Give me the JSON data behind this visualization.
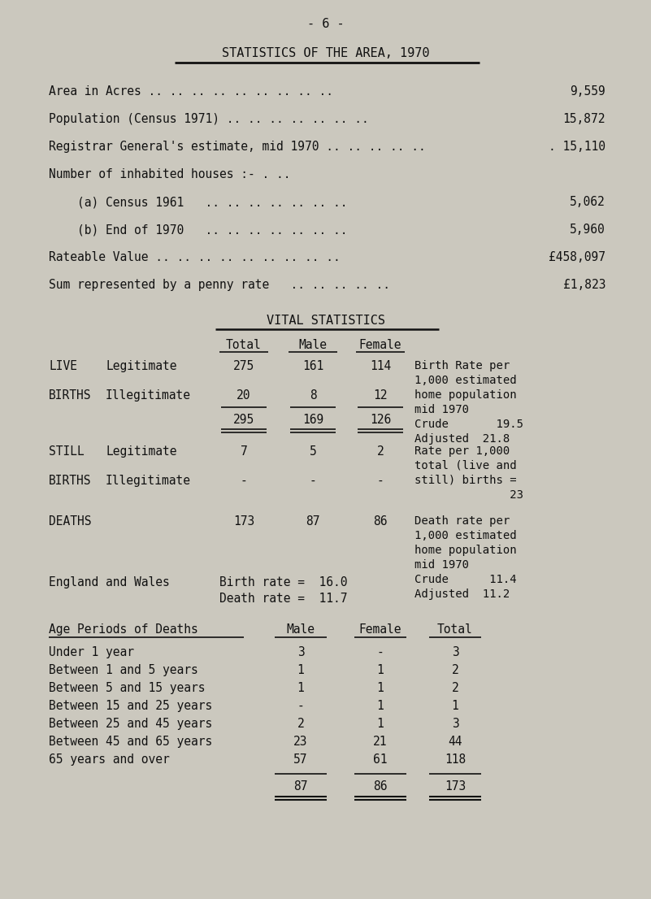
{
  "page_num": "- 6 -",
  "title": "STATISTICS OF THE AREA, 1970",
  "bg_color": "#cbc8be",
  "text_color": "#111111",
  "area_stats": [
    {
      "label": "Area in Acres .. .. .. .. .. .. .. .. ..",
      "value": "9,559"
    },
    {
      "label": "Population (Census 1971) .. .. .. .. .. .. ..",
      "value": "15,872"
    },
    {
      "label": "Registrar General's estimate, mid 1970 .. .. .. .. ..",
      "value": ". 15,110"
    },
    {
      "label": "Number of inhabited houses :- . ..",
      "value": ""
    },
    {
      "label": "    (a) Census 1961   .. .. .. .. .. .. ..",
      "value": "5,062"
    },
    {
      "label": "    (b) End of 1970   .. .. .. .. .. .. ..",
      "value": "5,960"
    },
    {
      "label": "Rateable Value .. .. .. .. .. .. .. .. ..",
      "value": "£458,097"
    },
    {
      "label": "Sum represented by a penny rate   .. .. .. .. ..",
      "value": "£1,823"
    }
  ],
  "vital_stats_title": "VITAL STATISTICS",
  "birth_rate_note": [
    "Birth Rate per",
    "1,000 estimated",
    "home population",
    "mid 1970",
    "Crude       19.5",
    "Adjusted  21.8"
  ],
  "still_birth_note": [
    "Rate per 1,000",
    "total (live and",
    "still) births =",
    "              23"
  ],
  "death_rate_note": [
    "Death rate per",
    "1,000 estimated",
    "home population",
    "mid 1970",
    "Crude      11.4",
    "Adjusted  11.2"
  ],
  "england_wales": "England and Wales",
  "eng_birth_rate": "Birth rate =  16.0",
  "eng_death_rate": "Death rate =  11.7",
  "age_periods_title": "Age Periods of Deaths",
  "age_periods_rows": [
    [
      "Under 1 year",
      "3",
      "-",
      "3"
    ],
    [
      "Between 1 and 5 years",
      "1",
      "1",
      "2"
    ],
    [
      "Between 5 and 15 years",
      "1",
      "1",
      "2"
    ],
    [
      "Between 15 and 25 years",
      "-",
      "1",
      "1"
    ],
    [
      "Between 25 and 45 years",
      "2",
      "1",
      "3"
    ],
    [
      "Between 45 and 65 years",
      "23",
      "21",
      "44"
    ],
    [
      "65 years and over",
      "57",
      "61",
      "118"
    ]
  ],
  "age_totals": [
    "87",
    "86",
    "173"
  ]
}
